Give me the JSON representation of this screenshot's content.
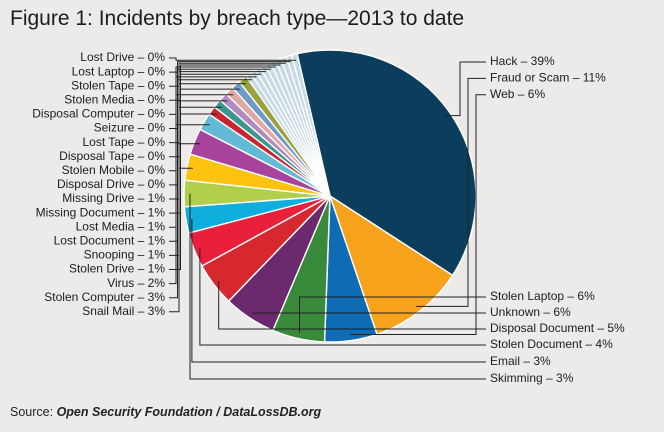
{
  "figure": {
    "title": "Figure 1: Incidents by breach type—2013 to date",
    "source_prefix": "Source: ",
    "source_name": "Open Security Foundation / DataLossDB.org"
  },
  "chart_data": {
    "type": "pie",
    "title": "Figure 1: Incidents by breach type—2013 to date",
    "slices": [
      {
        "label": "Hack – 39%",
        "name": "Hack",
        "value": 39,
        "color": "#0b3d5c"
      },
      {
        "label": "Fraud or Scam – 11%",
        "name": "Fraud or Scam",
        "value": 11,
        "color": "#f7a21b"
      },
      {
        "label": "Web – 6%",
        "name": "Web",
        "value": 6,
        "color": "#0f6bb3"
      },
      {
        "label": "Stolen Laptop – 6%",
        "name": "Stolen Laptop",
        "value": 6,
        "color": "#3a8a3c"
      },
      {
        "label": "Unknown – 6%",
        "name": "Unknown",
        "value": 6,
        "color": "#6b2a6e"
      },
      {
        "label": "Disposal Document – 5%",
        "name": "Disposal Document",
        "value": 5,
        "color": "#d7282f"
      },
      {
        "label": "Stolen Document – 4%",
        "name": "Stolen Document",
        "value": 4,
        "color": "#e91f3c"
      },
      {
        "label": "Email – 3%",
        "name": "Email",
        "value": 3,
        "color": "#0faedc"
      },
      {
        "label": "Skimming – 3%",
        "name": "Skimming",
        "value": 3,
        "color": "#b1cf4b"
      },
      {
        "label": "Snail Mail – 3%",
        "name": "Snail Mail",
        "value": 3,
        "color": "#fdc30f"
      },
      {
        "label": "Stolen Computer – 3%",
        "name": "Stolen Computer",
        "value": 3,
        "color": "#a7439d"
      },
      {
        "label": "Virus – 2%",
        "name": "Virus",
        "value": 2,
        "color": "#62bad4"
      },
      {
        "label": "Stolen Drive – 1%",
        "name": "Stolen Drive",
        "value": 1,
        "color": "#c8252e"
      },
      {
        "label": "Snooping – 1%",
        "name": "Snooping",
        "value": 1,
        "color": "#3a968f"
      },
      {
        "label": "Lost Document – 1%",
        "name": "Lost Document",
        "value": 1,
        "color": "#b38ac0"
      },
      {
        "label": "Lost Media – 1%",
        "name": "Lost Media",
        "value": 1,
        "color": "#e2a8a3"
      },
      {
        "label": "Missing Document – 1%",
        "name": "Missing Document",
        "value": 1,
        "color": "#6f9bc8"
      },
      {
        "label": "Missing Drive – 1%",
        "name": "Missing Drive",
        "value": 1,
        "color": "#9aa23d"
      },
      {
        "label": "Disposal Drive – 0%",
        "name": "Disposal Drive",
        "value": 0,
        "color": "#c7d9e2"
      },
      {
        "label": "Stolen Mobile – 0%",
        "name": "Stolen Mobile",
        "value": 0,
        "color": "#c7d9e2"
      },
      {
        "label": "Disposal Tape – 0%",
        "name": "Disposal Tape",
        "value": 0,
        "color": "#c7d9e2"
      },
      {
        "label": "Lost Tape – 0%",
        "name": "Lost Tape",
        "value": 0,
        "color": "#c7d9e2"
      },
      {
        "label": "Seizure – 0%",
        "name": "Seizure",
        "value": 0,
        "color": "#c7d9e2"
      },
      {
        "label": "Disposal Computer – 0%",
        "name": "Disposal Computer",
        "value": 0,
        "color": "#c7d9e2"
      },
      {
        "label": "Stolen Media – 0%",
        "name": "Stolen Media",
        "value": 0,
        "color": "#c7d9e2"
      },
      {
        "label": "Stolen Tape – 0%",
        "name": "Stolen Tape",
        "value": 0,
        "color": "#c7d9e2"
      },
      {
        "label": "Lost Laptop – 0%",
        "name": "Lost Laptop",
        "value": 0,
        "color": "#c7d9e2"
      },
      {
        "label": "Lost Drive – 0%",
        "name": "Lost Drive",
        "value": 0,
        "color": "#c7d9e2"
      }
    ],
    "zero_slices_color": "#c7d9e2",
    "legend": "callout labels around pie"
  }
}
